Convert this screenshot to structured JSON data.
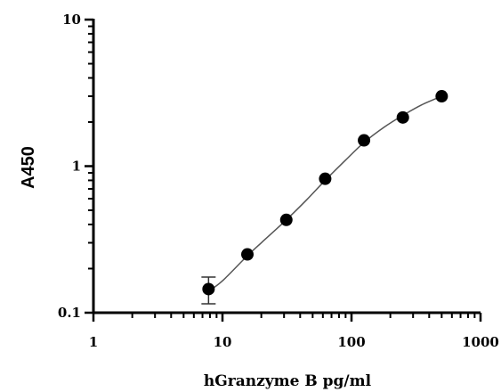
{
  "chart_data": {
    "type": "scatter",
    "xlabel": "hGranzyme B pg/ml",
    "ylabel": "A450",
    "x_scale": "log",
    "y_scale": "log",
    "xlim": [
      1,
      1000
    ],
    "ylim": [
      0.1,
      10
    ],
    "x_ticks": [
      {
        "value": 1,
        "label": "1"
      },
      {
        "value": 10,
        "label": "10"
      },
      {
        "value": 100,
        "label": "100"
      },
      {
        "value": 1000,
        "label": "1000"
      }
    ],
    "y_ticks": [
      {
        "value": 0.1,
        "label": "0.1"
      },
      {
        "value": 1,
        "label": "1"
      },
      {
        "value": 10,
        "label": "10"
      }
    ],
    "grid": false,
    "series": [
      {
        "x": [
          7.8,
          15.6,
          31.25,
          62.5,
          125,
          250,
          500
        ],
        "y": [
          0.145,
          0.25,
          0.43,
          0.82,
          1.5,
          2.15,
          3.0
        ],
        "error": [
          0.03,
          0,
          0,
          0,
          0,
          0,
          0
        ],
        "marker": "circle",
        "color": "#000000"
      }
    ],
    "fit_curve": {
      "x": [
        7.8,
        10,
        15.6,
        20,
        31.25,
        45,
        62.5,
        90,
        125,
        180,
        250,
        350,
        500
      ],
      "y": [
        0.14,
        0.165,
        0.245,
        0.3,
        0.43,
        0.59,
        0.8,
        1.1,
        1.45,
        1.85,
        2.22,
        2.62,
        3.0
      ],
      "color": "#555555"
    }
  }
}
